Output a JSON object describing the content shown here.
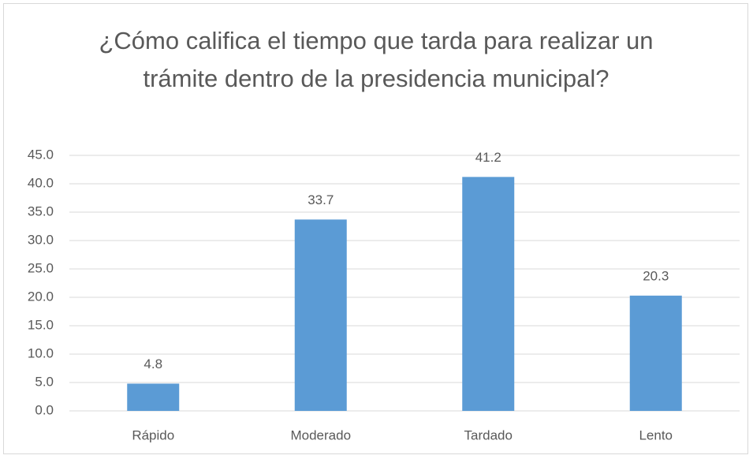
{
  "chart_data": {
    "type": "bar",
    "title": "¿Cómo califica el tiempo que tarda para realizar un trámite dentro de la presidencia municipal?",
    "categories": [
      "Rápido",
      "Moderado",
      "Tardado",
      "Lento"
    ],
    "values": [
      4.8,
      33.7,
      41.2,
      20.3
    ],
    "color": "#5b9bd5",
    "ylim": [
      0,
      45
    ],
    "yticks": [
      {
        "value": 0,
        "label": "0.0"
      },
      {
        "value": 5,
        "label": "5.0"
      },
      {
        "value": 10,
        "label": "10.0"
      },
      {
        "value": 15,
        "label": "15.0"
      },
      {
        "value": 20,
        "label": "20.0"
      },
      {
        "value": 25,
        "label": "25.0"
      },
      {
        "value": 30,
        "label": "30.0"
      },
      {
        "value": 35,
        "label": "35.0"
      },
      {
        "value": 40,
        "label": "40.0"
      },
      {
        "value": 45,
        "label": "45.0"
      }
    ],
    "grid": true
  }
}
